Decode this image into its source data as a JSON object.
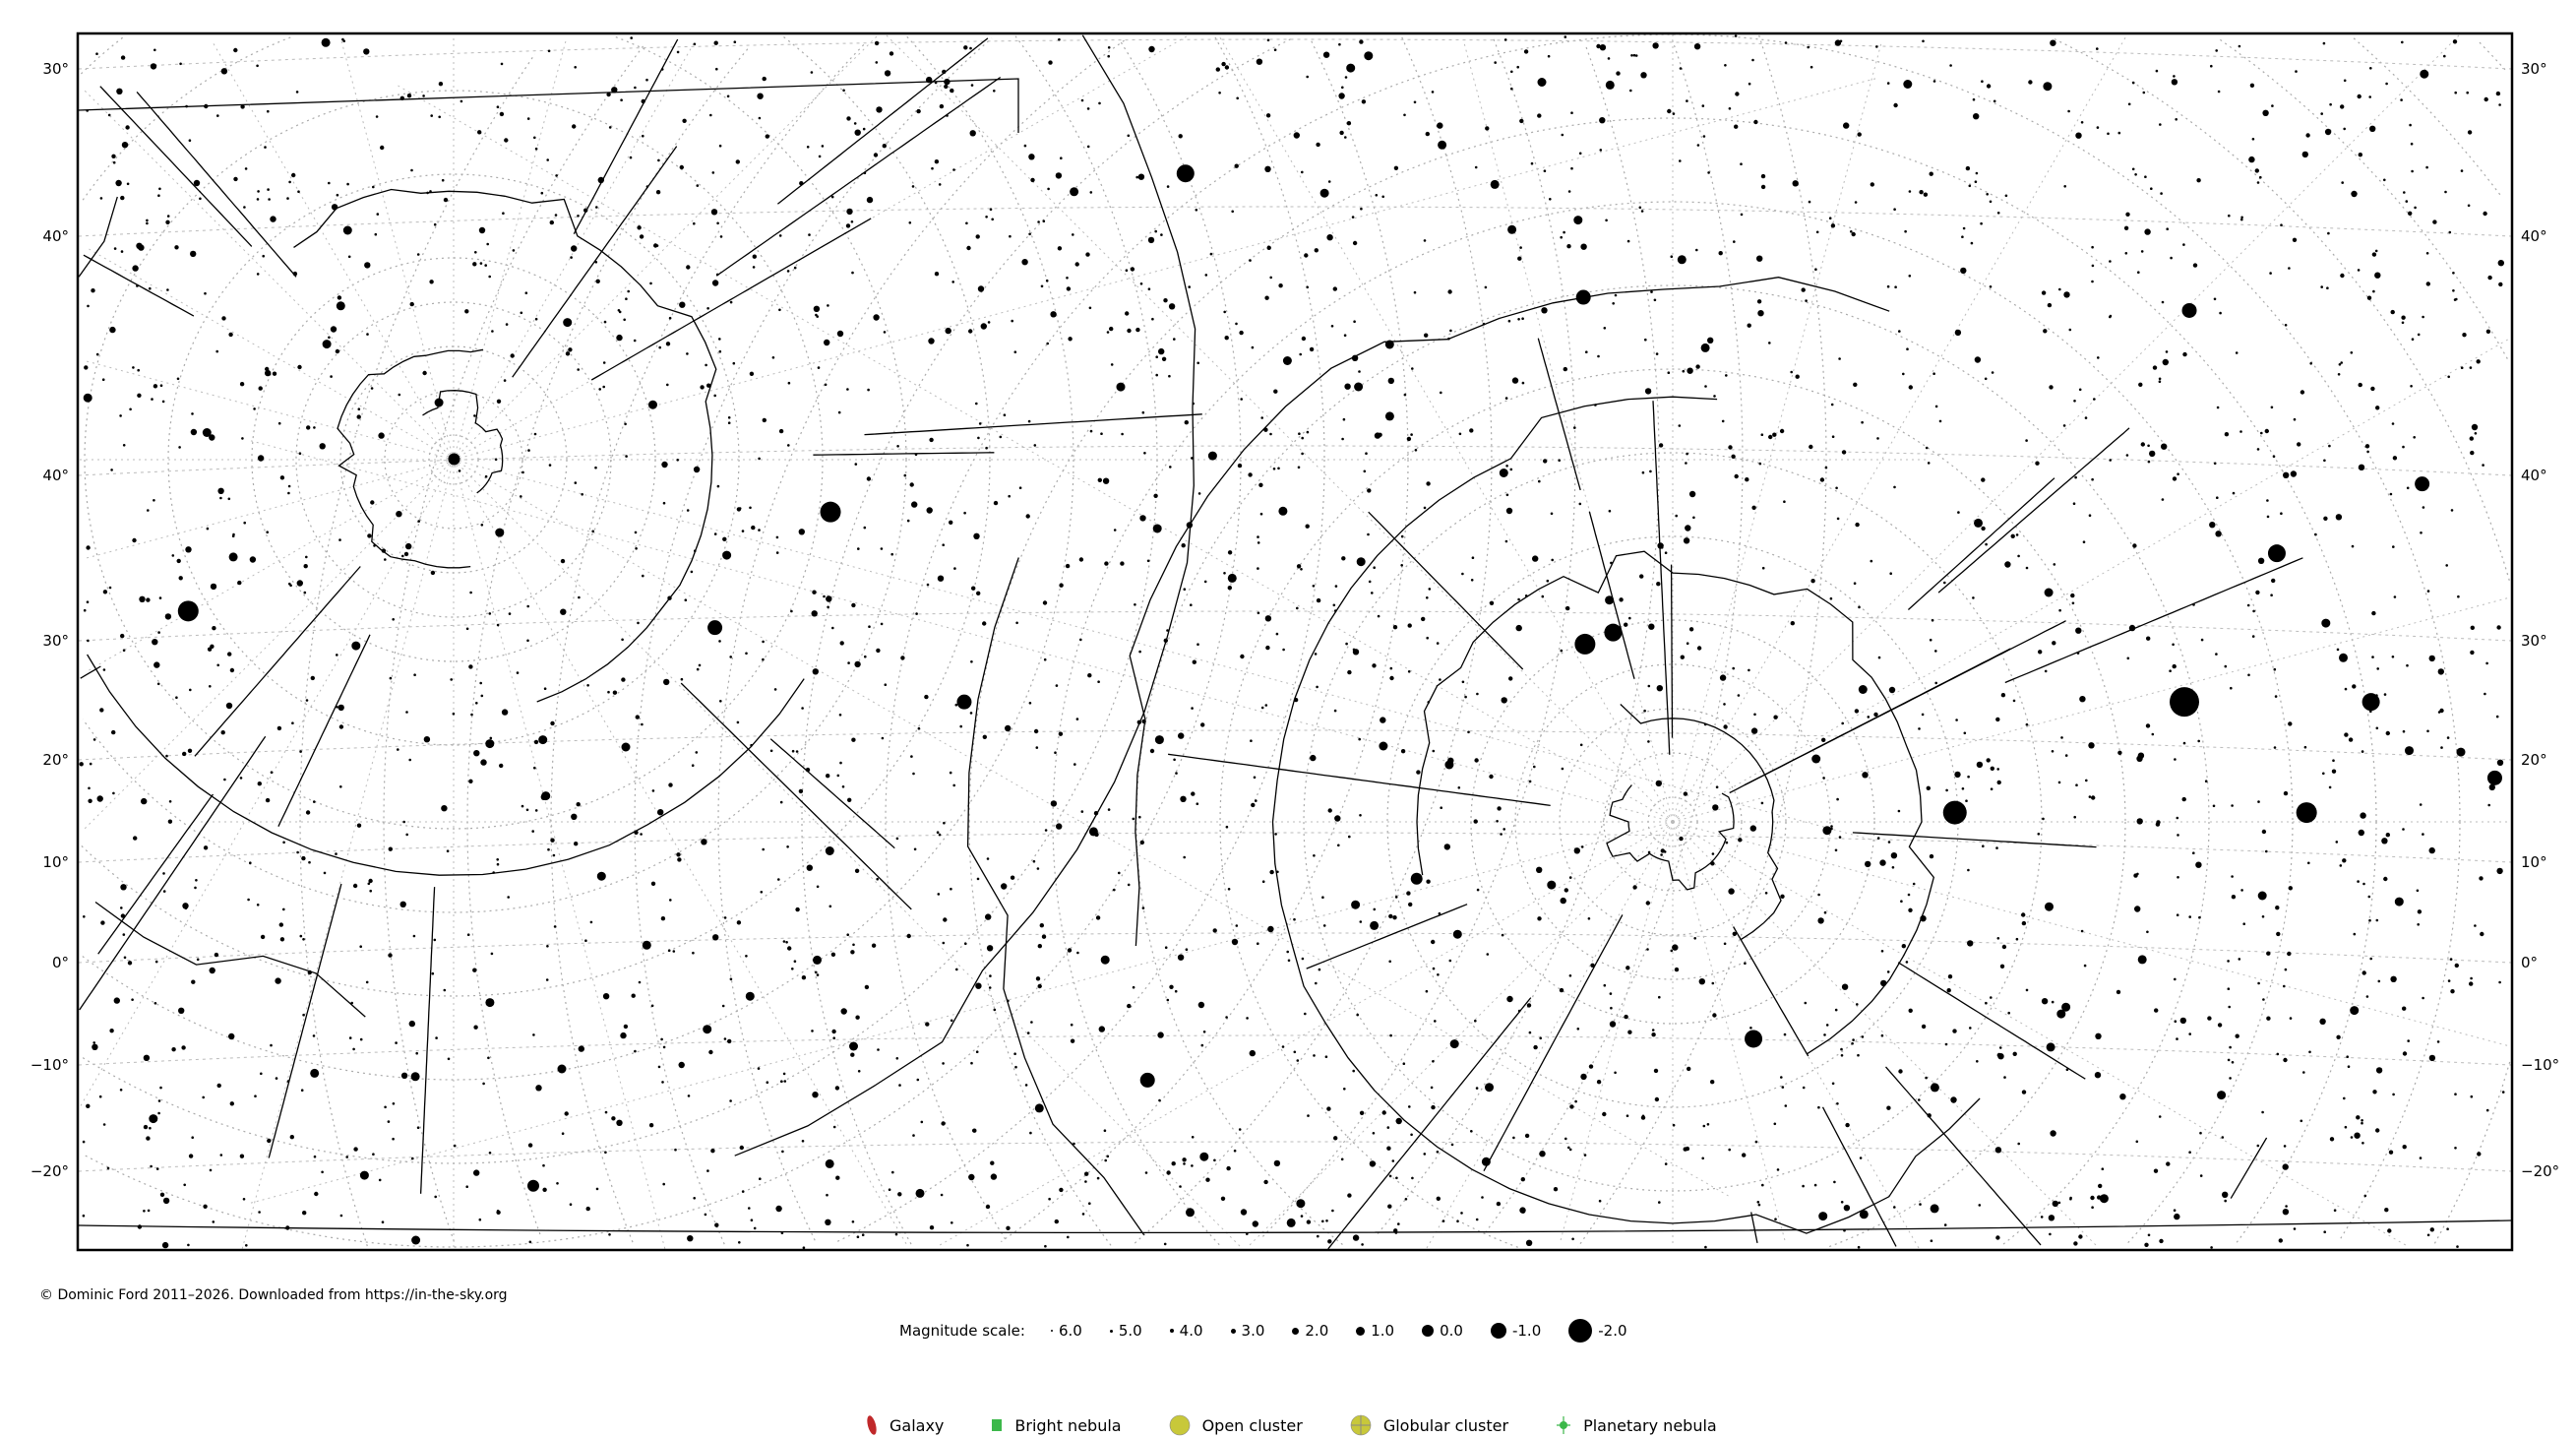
{
  "map": {
    "dec_labels_left": [
      "30°",
      "40°",
      "40°",
      "30°",
      "20°",
      "10°",
      "0°",
      "−10°",
      "−20°"
    ],
    "dec_labels_right": [
      "30°",
      "40°",
      "40°",
      "30°",
      "20°",
      "10°",
      "0°",
      "−10°",
      "−20°"
    ],
    "grid": "dotted",
    "background": "#ffffff",
    "star_color": "#000000"
  },
  "footer": {
    "copyright": "© Dominic Ford 2011–2026. Downloaded from https://in-the-sky.org"
  },
  "magnitude_scale": {
    "label": "Magnitude scale:",
    "items": [
      "6.0",
      "5.0",
      "4.0",
      "3.0",
      "2.0",
      "1.0",
      "0.0",
      "-1.0",
      "-2.0"
    ]
  },
  "legend": {
    "items": [
      {
        "label": "Galaxy",
        "icon": "galaxy-icon",
        "color": "#c0282a"
      },
      {
        "label": "Bright nebula",
        "icon": "bright-nebula-icon",
        "color": "#3cb84a"
      },
      {
        "label": "Open cluster",
        "icon": "open-cluster-icon",
        "color": "#c8c83a"
      },
      {
        "label": "Globular cluster",
        "icon": "globular-cluster-icon",
        "color": "#c8c83a"
      },
      {
        "label": "Planetary nebula",
        "icon": "planetary-nebula-icon",
        "color": "#3cb84a"
      }
    ]
  }
}
